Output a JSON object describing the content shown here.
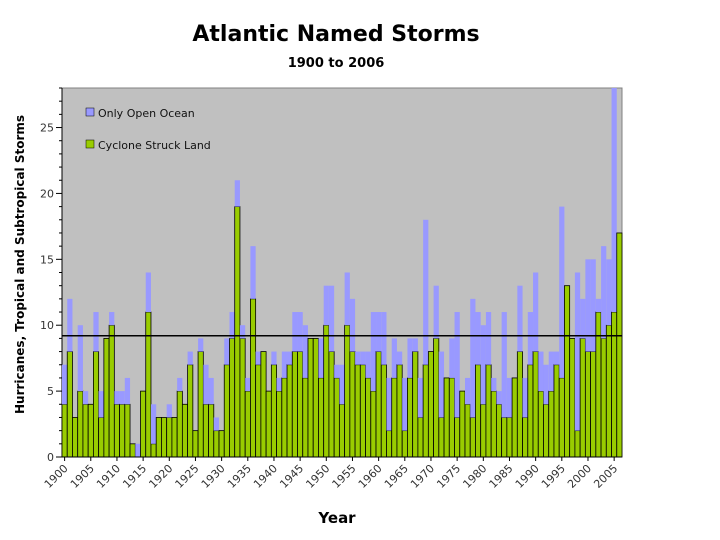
{
  "chart_data": {
    "type": "bar",
    "stacked": true,
    "title": "Atlantic Named Storms",
    "subtitle": "1900 to 2006",
    "xlabel": "Year",
    "ylabel": "Hurricanes, Tropical and Subtropical Storms",
    "ylim": [
      0,
      28
    ],
    "yticks": [
      0,
      5,
      10,
      15,
      20,
      25
    ],
    "xtick_labels": [
      "1900",
      "1905",
      "1910",
      "1915",
      "1920",
      "1925",
      "1930",
      "1935",
      "1940",
      "1945",
      "1950",
      "1955",
      "1960",
      "1965",
      "1970",
      "1975",
      "1980",
      "1985",
      "1990",
      "1995",
      "2000",
      "2005"
    ],
    "grid": false,
    "legend_position": "top-left",
    "reference_line": {
      "value": 9.2
    },
    "colors": {
      "plot_bg": "#c0c0c0",
      "land": "#99cc00",
      "ocean": "#9999ff",
      "bar_outline": "#000000",
      "reference": "#000000"
    },
    "categories": [
      1900,
      1901,
      1902,
      1903,
      1904,
      1905,
      1906,
      1907,
      1908,
      1909,
      1910,
      1911,
      1912,
      1913,
      1914,
      1915,
      1916,
      1917,
      1918,
      1919,
      1920,
      1921,
      1922,
      1923,
      1924,
      1925,
      1926,
      1927,
      1928,
      1929,
      1930,
      1931,
      1932,
      1933,
      1934,
      1935,
      1936,
      1937,
      1938,
      1939,
      1940,
      1941,
      1942,
      1943,
      1944,
      1945,
      1946,
      1947,
      1948,
      1949,
      1950,
      1951,
      1952,
      1953,
      1954,
      1955,
      1956,
      1957,
      1958,
      1959,
      1960,
      1961,
      1962,
      1963,
      1964,
      1965,
      1966,
      1967,
      1968,
      1969,
      1970,
      1971,
      1972,
      1973,
      1974,
      1975,
      1976,
      1977,
      1978,
      1979,
      1980,
      1981,
      1982,
      1983,
      1984,
      1985,
      1986,
      1987,
      1988,
      1989,
      1990,
      1991,
      1992,
      1993,
      1994,
      1995,
      1996,
      1997,
      1998,
      1999,
      2000,
      2001,
      2002,
      2003,
      2004,
      2005,
      2006
    ],
    "series": [
      {
        "name": "Cyclone Struck Land",
        "color": "#99cc00",
        "values": [
          4,
          8,
          3,
          5,
          4,
          4,
          8,
          3,
          9,
          10,
          4,
          4,
          4,
          1,
          0,
          5,
          11,
          1,
          3,
          3,
          3,
          3,
          5,
          4,
          7,
          2,
          8,
          4,
          4,
          2,
          2,
          7,
          9,
          19,
          9,
          5,
          12,
          7,
          8,
          5,
          7,
          5,
          6,
          7,
          8,
          8,
          6,
          9,
          9,
          6,
          10,
          8,
          6,
          4,
          10,
          8,
          7,
          7,
          6,
          5,
          8,
          7,
          2,
          6,
          7,
          2,
          6,
          8,
          3,
          7,
          8,
          9,
          3,
          6,
          6,
          3,
          5,
          4,
          3,
          7,
          4,
          7,
          5,
          4,
          3,
          3,
          6,
          8,
          3,
          7,
          8,
          5,
          4,
          5,
          7,
          6,
          13,
          9,
          2,
          9,
          8,
          8,
          11,
          9,
          10,
          11,
          17
        ]
      },
      {
        "name": "Only Open Ocean",
        "color": "#9999ff",
        "values": [
          3,
          4,
          0,
          5,
          1,
          0,
          3,
          2,
          0,
          1,
          1,
          1,
          2,
          0,
          1,
          0,
          3,
          3,
          0,
          0,
          1,
          0,
          1,
          0,
          1,
          0,
          1,
          3,
          2,
          1,
          0,
          2,
          2,
          2,
          1,
          1,
          4,
          1,
          0,
          0,
          1,
          1,
          2,
          1,
          3,
          3,
          4,
          0,
          0,
          3,
          3,
          5,
          1,
          3,
          4,
          4,
          1,
          1,
          2,
          6,
          3,
          4,
          4,
          3,
          1,
          4,
          3,
          1,
          3,
          11,
          0,
          4,
          5,
          0,
          3,
          8,
          0,
          2,
          9,
          4,
          6,
          4,
          1,
          1,
          8,
          3,
          0,
          5,
          3,
          4,
          6,
          3,
          3,
          3,
          1,
          13,
          0,
          0,
          12,
          3,
          7,
          7,
          1,
          7,
          5,
          17,
          0
        ]
      }
    ]
  }
}
